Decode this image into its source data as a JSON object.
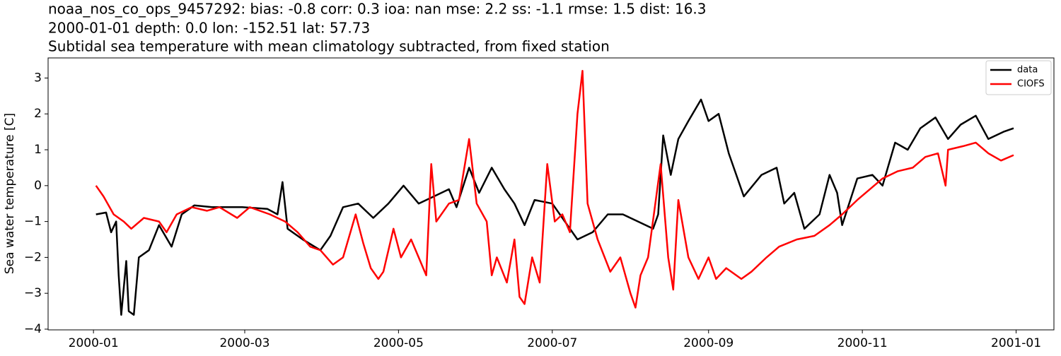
{
  "chart_data": {
    "type": "line",
    "title": "noaa_nos_co_ops_9457292: bias: -0.8  corr: 0.3  ioa: nan  mse: 2.2  ss: -1.1  rmse: 1.5  dist: 16.3",
    "subtitle": "2000-01-01 depth: 0.0 lon: -152.51 lat: 57.73",
    "description": "Subtidal sea temperature with mean climatology subtracted, from fixed station",
    "y_label": "Sea water temperature [C]",
    "legend": "upper right",
    "grid": false,
    "xlim": [
      "1999-12-14",
      "2001-01-16"
    ],
    "xticks": [
      {
        "value": "2000-01-01",
        "label": "2000-01"
      },
      {
        "value": "2000-03-01",
        "label": "2000-03"
      },
      {
        "value": "2000-05-01",
        "label": "2000-05"
      },
      {
        "value": "2000-07-01",
        "label": "2000-07"
      },
      {
        "value": "2000-09-01",
        "label": "2000-09"
      },
      {
        "value": "2000-11-01",
        "label": "2000-11"
      },
      {
        "value": "2001-01-01",
        "label": "2001-01"
      }
    ],
    "ylim": [
      -4.02,
      3.56
    ],
    "yticks": [
      {
        "value": -4,
        "label": "−4"
      },
      {
        "value": -3,
        "label": "−3"
      },
      {
        "value": -2,
        "label": "−2"
      },
      {
        "value": -1,
        "label": "−1"
      },
      0,
      1,
      2,
      3
    ],
    "series": [
      {
        "name": "data",
        "color": "#000000",
        "x": [
          "2000-01-02",
          "2000-01-06",
          "2000-01-08",
          "2000-01-10",
          "2000-01-11",
          "2000-01-12",
          "2000-01-14",
          "2000-01-15",
          "2000-01-17",
          "2000-01-19",
          "2000-01-23",
          "2000-01-27",
          "2000-02-01",
          "2000-02-05",
          "2000-02-10",
          "2000-02-17",
          "2000-02-29",
          "2000-03-10",
          "2000-03-14",
          "2000-03-16",
          "2000-03-18",
          "2000-03-24",
          "2000-03-31",
          "2000-04-04",
          "2000-04-09",
          "2000-04-15",
          "2000-04-21",
          "2000-04-27",
          "2000-05-03",
          "2000-05-09",
          "2000-05-15",
          "2000-05-21",
          "2000-05-24",
          "2000-05-29",
          "2000-06-02",
          "2000-06-07",
          "2000-06-12",
          "2000-06-16",
          "2000-06-20",
          "2000-06-24",
          "2000-07-01",
          "2000-07-06",
          "2000-07-11",
          "2000-07-17",
          "2000-07-23",
          "2000-07-29",
          "2000-08-04",
          "2000-08-10",
          "2000-08-12",
          "2000-08-14",
          "2000-08-17",
          "2000-08-20",
          "2000-08-24",
          "2000-08-29",
          "2000-09-01",
          "2000-09-05",
          "2000-09-09",
          "2000-09-15",
          "2000-09-22",
          "2000-09-28",
          "2000-10-01",
          "2000-10-05",
          "2000-10-09",
          "2000-10-15",
          "2000-10-19",
          "2000-10-22",
          "2000-10-24",
          "2000-10-30",
          "2000-11-05",
          "2000-11-09",
          "2000-11-14",
          "2000-11-19",
          "2000-11-24",
          "2000-11-30",
          "2000-12-05",
          "2000-12-10",
          "2000-12-16",
          "2000-12-21",
          "2000-12-27",
          "2000-12-31"
        ],
        "values": [
          -0.8,
          -0.75,
          -1.3,
          -1.0,
          -2.5,
          -3.6,
          -2.1,
          -3.5,
          -3.6,
          -2.0,
          -1.8,
          -1.1,
          -1.7,
          -0.8,
          -0.55,
          -0.6,
          -0.6,
          -0.65,
          -0.8,
          0.1,
          -1.2,
          -1.5,
          -1.8,
          -1.4,
          -0.6,
          -0.5,
          -0.9,
          -0.5,
          0.0,
          -0.5,
          -0.3,
          -0.1,
          -0.6,
          0.5,
          -0.2,
          0.5,
          -0.1,
          -0.5,
          -1.1,
          -0.4,
          -0.5,
          -1.0,
          -1.5,
          -1.3,
          -0.8,
          -0.8,
          -1.0,
          -1.2,
          -0.8,
          1.4,
          0.3,
          1.3,
          1.8,
          2.4,
          1.8,
          2.0,
          0.9,
          -0.3,
          0.3,
          0.5,
          -0.5,
          -0.2,
          -1.2,
          -0.8,
          0.3,
          -0.2,
          -1.1,
          0.2,
          0.3,
          0.0,
          1.2,
          1.0,
          1.6,
          1.9,
          1.3,
          1.7,
          1.95,
          1.3,
          1.5,
          1.6
        ]
      },
      {
        "name": "CIOFS",
        "color": "#ff0000",
        "x": [
          "2000-01-02",
          "2000-01-05",
          "2000-01-09",
          "2000-01-13",
          "2000-01-16",
          "2000-01-21",
          "2000-01-27",
          "2000-01-30",
          "2000-02-03",
          "2000-02-09",
          "2000-02-15",
          "2000-02-20",
          "2000-02-27",
          "2000-03-03",
          "2000-03-11",
          "2000-03-17",
          "2000-03-22",
          "2000-03-27",
          "2000-03-31",
          "2000-04-05",
          "2000-04-09",
          "2000-04-14",
          "2000-04-17",
          "2000-04-20",
          "2000-04-23",
          "2000-04-25",
          "2000-04-29",
          "2000-05-02",
          "2000-05-06",
          "2000-05-09",
          "2000-05-12",
          "2000-05-14",
          "2000-05-16",
          "2000-05-21",
          "2000-05-25",
          "2000-05-29",
          "2000-06-01",
          "2000-06-05",
          "2000-06-07",
          "2000-06-09",
          "2000-06-13",
          "2000-06-16",
          "2000-06-18",
          "2000-06-20",
          "2000-06-23",
          "2000-06-26",
          "2000-06-29",
          "2000-07-02",
          "2000-07-05",
          "2000-07-08",
          "2000-07-11",
          "2000-07-13",
          "2000-07-15",
          "2000-07-19",
          "2000-07-24",
          "2000-07-28",
          "2000-08-01",
          "2000-08-03",
          "2000-08-05",
          "2000-08-08",
          "2000-08-13",
          "2000-08-16",
          "2000-08-18",
          "2000-08-20",
          "2000-08-24",
          "2000-08-28",
          "2000-09-01",
          "2000-09-04",
          "2000-09-08",
          "2000-09-14",
          "2000-09-18",
          "2000-09-24",
          "2000-09-29",
          "2000-10-06",
          "2000-10-13",
          "2000-10-19",
          "2000-10-24",
          "2000-10-30",
          "2000-11-04",
          "2000-11-09",
          "2000-11-15",
          "2000-11-21",
          "2000-11-26",
          "2000-12-01",
          "2000-12-04",
          "2000-12-05",
          "2000-12-11",
          "2000-12-16",
          "2000-12-21",
          "2000-12-26",
          "2000-12-31"
        ],
        "values": [
          0.0,
          -0.3,
          -0.8,
          -1.0,
          -1.2,
          -0.9,
          -1.0,
          -1.3,
          -0.8,
          -0.6,
          -0.7,
          -0.6,
          -0.9,
          -0.6,
          -0.8,
          -1.0,
          -1.3,
          -1.7,
          -1.8,
          -2.2,
          -2.0,
          -0.8,
          -1.6,
          -2.3,
          -2.6,
          -2.4,
          -1.2,
          -2.0,
          -1.5,
          -2.0,
          -2.5,
          0.6,
          -1.0,
          -0.5,
          -0.4,
          1.3,
          -0.5,
          -1.0,
          -2.5,
          -2.0,
          -2.7,
          -1.5,
          -3.1,
          -3.3,
          -2.0,
          -2.7,
          0.6,
          -1.0,
          -0.8,
          -1.3,
          2.0,
          3.2,
          -0.5,
          -1.5,
          -2.4,
          -2.0,
          -3.0,
          -3.4,
          -2.5,
          -2.0,
          0.6,
          -2.0,
          -2.9,
          -0.4,
          -2.0,
          -2.6,
          -2.0,
          -2.6,
          -2.3,
          -2.6,
          -2.4,
          -2.0,
          -1.7,
          -1.5,
          -1.4,
          -1.1,
          -0.8,
          -0.4,
          -0.1,
          0.2,
          0.4,
          0.5,
          0.8,
          0.9,
          0.0,
          1.0,
          1.1,
          1.2,
          0.9,
          0.7,
          0.85
        ]
      }
    ]
  }
}
